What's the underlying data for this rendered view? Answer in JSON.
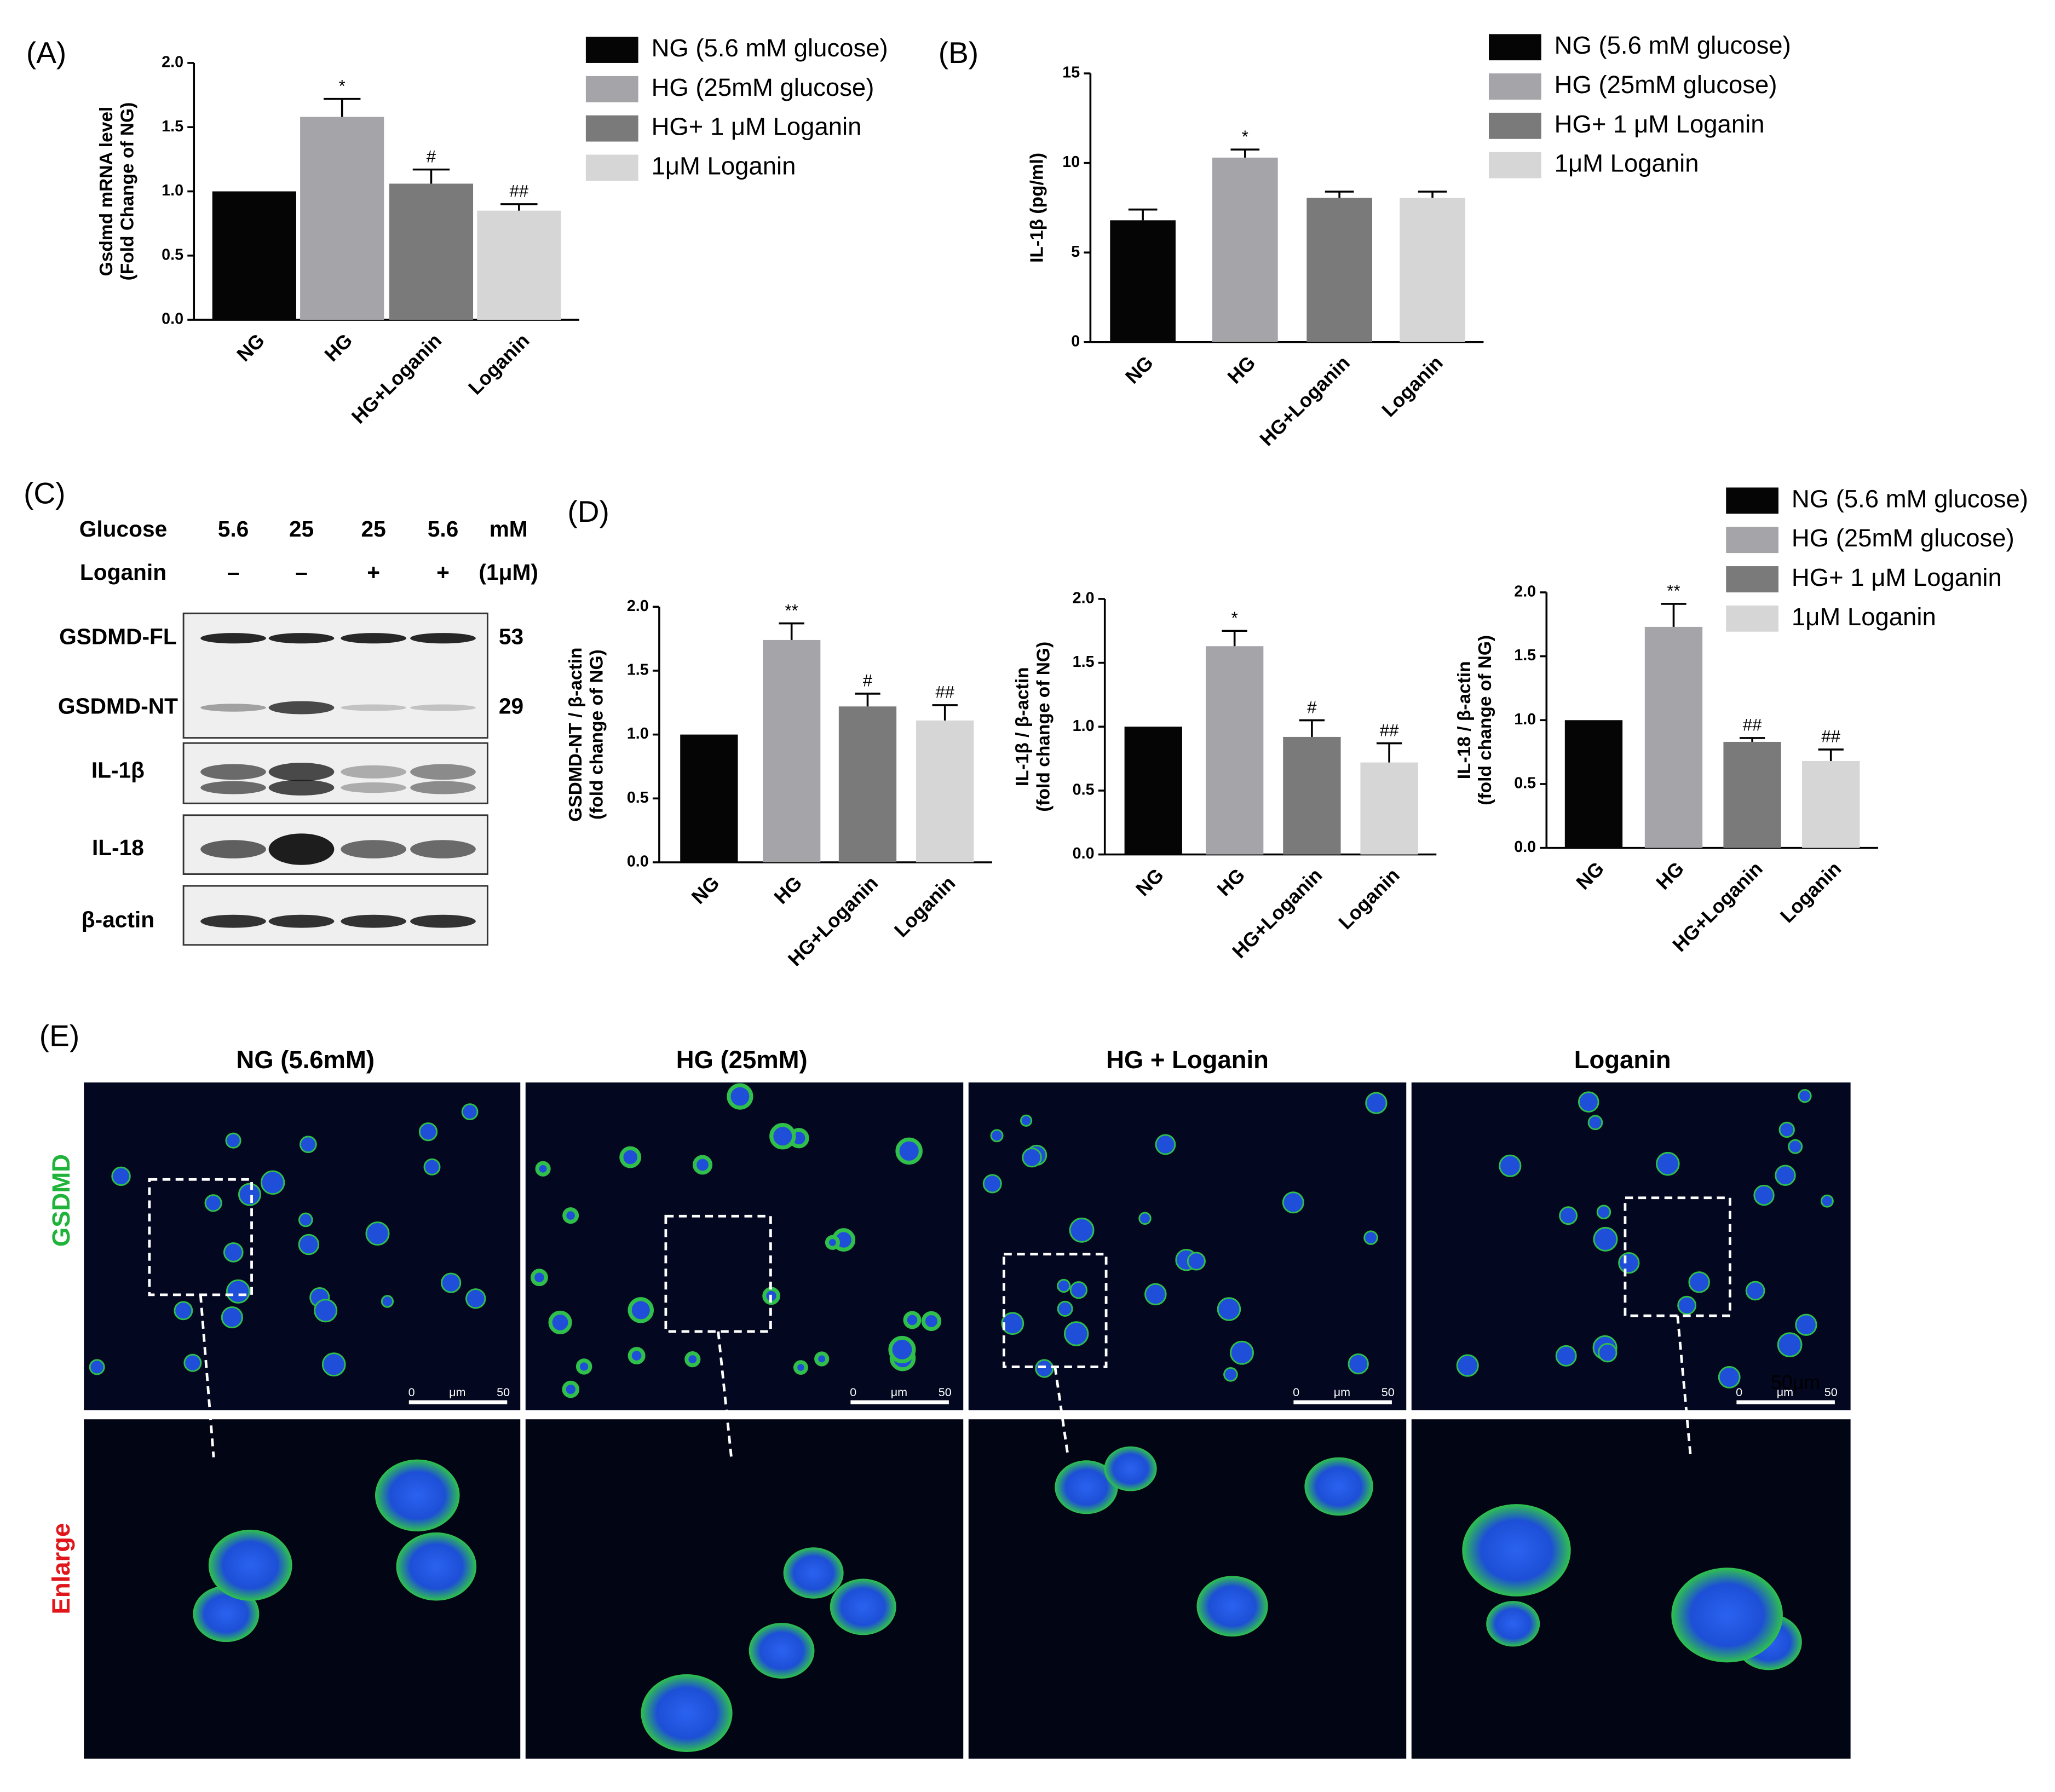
{
  "chart_data": [
    {
      "type": "bar",
      "panel_label": "(A)",
      "ylabel": [
        "Gsdmd mRNA level",
        "(Fold Change of NG)"
      ],
      "categories": [
        "NG",
        "HG",
        "HG+Loganin",
        "Loganin"
      ],
      "values": [
        1.0,
        1.58,
        1.06,
        0.85
      ],
      "errors": [
        null,
        0.14,
        0.11,
        0.05
      ],
      "annotations": [
        null,
        "*",
        "#",
        "##"
      ],
      "colors": [
        "#050505",
        "#a4a4a9",
        "#7a7a7a",
        "#d6d6d6"
      ],
      "legend": [
        "NG (5.6 mM glucose)",
        "HG (25mM glucose)",
        "HG+ 1 μM Loganin",
        "1μM Loganin"
      ],
      "ylim": [
        0,
        2
      ],
      "yticks": [
        {
          "value": 0,
          "label": "0.0"
        },
        {
          "value": 0.5,
          "label": "0.5"
        },
        {
          "value": 1,
          "label": "1.0"
        },
        {
          "value": 1.5,
          "label": "1.5"
        },
        {
          "value": 2,
          "label": "2.0"
        }
      ]
    },
    {
      "type": "bar",
      "panel_label": "(B)",
      "ylabel": [
        "IL-1β (pg/ml)"
      ],
      "categories": [
        "NG",
        "HG",
        "HG+Loganin",
        "Loganin"
      ],
      "values": [
        6.8,
        10.3,
        8.05,
        8.05
      ],
      "errors": [
        0.6,
        0.45,
        0.35,
        0.35
      ],
      "annotations": [
        null,
        "*",
        null,
        null
      ],
      "colors": [
        "#050505",
        "#a4a4a9",
        "#7a7a7a",
        "#d6d6d6"
      ],
      "legend": [
        "NG (5.6 mM glucose)",
        "HG (25mM glucose)",
        "HG+ 1 μM Loganin",
        "1μM Loganin"
      ],
      "ylim": [
        0,
        15
      ],
      "yticks": [
        0,
        5,
        10,
        15
      ]
    },
    {
      "type": "bar",
      "panel_label": "(D)",
      "ylabel": [
        "GSDMD-NT / β-actin",
        "(fold change of NG)"
      ],
      "categories": [
        "NG",
        "HG",
        "HG+Loganin",
        "Loganin"
      ],
      "values": [
        1.0,
        1.74,
        1.22,
        1.11
      ],
      "errors": [
        null,
        0.13,
        0.1,
        0.12
      ],
      "annotations": [
        null,
        "**",
        "#",
        "##"
      ],
      "colors": [
        "#050505",
        "#a4a4a9",
        "#7a7a7a",
        "#d6d6d6"
      ],
      "ylim": [
        0,
        2
      ],
      "yticks": [
        {
          "value": 0,
          "label": "0.0"
        },
        {
          "value": 0.5,
          "label": "0.5"
        },
        {
          "value": 1,
          "label": "1.0"
        },
        {
          "value": 1.5,
          "label": "1.5"
        },
        {
          "value": 2,
          "label": "2.0"
        }
      ]
    },
    {
      "type": "bar",
      "ylabel": [
        "IL-1β / β-actin",
        "(fold change of NG)"
      ],
      "categories": [
        "NG",
        "HG",
        "HG+Loganin",
        "Loganin"
      ],
      "values": [
        1.0,
        1.63,
        0.92,
        0.72
      ],
      "errors": [
        null,
        0.12,
        0.13,
        0.15
      ],
      "annotations": [
        null,
        "*",
        "#",
        "##"
      ],
      "colors": [
        "#050505",
        "#a4a4a9",
        "#7a7a7a",
        "#d6d6d6"
      ],
      "ylim": [
        0,
        2
      ],
      "yticks": [
        {
          "value": 0,
          "label": "0.0"
        },
        {
          "value": 0.5,
          "label": "0.5"
        },
        {
          "value": 1,
          "label": "1.0"
        },
        {
          "value": 1.5,
          "label": "1.5"
        },
        {
          "value": 2,
          "label": "2.0"
        }
      ]
    },
    {
      "type": "bar",
      "ylabel": [
        "IL-18  / β-actin",
        "(fold change of NG)"
      ],
      "categories": [
        "NG",
        "HG",
        "HG+Loganin",
        "Loganin"
      ],
      "values": [
        1.0,
        1.73,
        0.83,
        0.68
      ],
      "errors": [
        null,
        0.18,
        0.03,
        0.09
      ],
      "annotations": [
        null,
        "**",
        "##",
        "##"
      ],
      "colors": [
        "#050505",
        "#a4a4a9",
        "#7a7a7a",
        "#d6d6d6"
      ],
      "legend": [
        "NG (5.6 mM glucose)",
        "HG (25mM glucose)",
        "HG+ 1 μM Loganin",
        "1μM Loganin"
      ],
      "ylim": [
        0,
        2
      ],
      "yticks": [
        {
          "value": 0,
          "label": "0.0"
        },
        {
          "value": 0.5,
          "label": "0.5"
        },
        {
          "value": 1,
          "label": "1.0"
        },
        {
          "value": 1.5,
          "label": "1.5"
        },
        {
          "value": 2,
          "label": "2.0"
        }
      ]
    }
  ],
  "blot": {
    "panel_label": "(C)",
    "glucose": {
      "label": "Glucose",
      "lanes": [
        "5.6",
        "25",
        "25",
        "5.6"
      ],
      "unit": "mM"
    },
    "loganin": {
      "label": "Loganin",
      "lanes": [
        "–",
        "–",
        "+",
        "+"
      ],
      "unit": "(1μM)"
    },
    "rows": [
      "GSDMD-FL",
      "GSDMD-NT",
      "IL-1β",
      "IL-18",
      "β-actin"
    ],
    "sizes": [
      "53",
      "29"
    ]
  },
  "images": {
    "panel_label": "(E)",
    "columns": [
      "NG (5.6mM)",
      "HG (25mM)",
      "HG + Loganin",
      "Loganin"
    ],
    "rows": [
      "GSDMD",
      "Enlarge"
    ],
    "scale": [
      "0",
      "μm",
      "50"
    ],
    "scale_note": "50μm"
  }
}
